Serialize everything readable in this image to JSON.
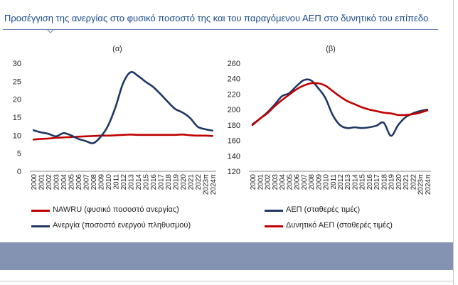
{
  "header": {
    "title": "Προσέγγιση της ανεργίας στο φυσικό ποσοστό της και του παραγόμενου ΑΕΠ στο δυνητικό του επίπεδο"
  },
  "colors": {
    "title": "#1a4a8c",
    "blue_series": "#1f3864",
    "red_series": "#c00000",
    "footer_band": "#8393b1"
  },
  "chart_data": [
    {
      "type": "line",
      "title": "(α)",
      "xlabel": "",
      "ylabel": "",
      "ylim": [
        0,
        30
      ],
      "yticks": [
        0,
        5,
        10,
        15,
        20,
        25,
        30
      ],
      "grid": false,
      "legend": "bottom",
      "categories": [
        "2000",
        "2001",
        "2002",
        "2003",
        "2004",
        "2005",
        "2006",
        "2007",
        "2008",
        "2009",
        "2010",
        "2011",
        "2012",
        "2013",
        "2014",
        "2015",
        "2016",
        "2017",
        "2018",
        "2019",
        "2020",
        "2021",
        "2022",
        "2023π",
        "2024π"
      ],
      "series": [
        {
          "name": "NAWRU (φυσικό ποσοστό ανεργίας)",
          "color": "#c00000",
          "values": [
            8.8,
            9.0,
            9.1,
            9.3,
            9.4,
            9.5,
            9.6,
            9.7,
            9.8,
            9.9,
            9.9,
            10.0,
            10.1,
            10.2,
            10.1,
            10.1,
            10.1,
            10.1,
            10.1,
            10.1,
            10.2,
            10.0,
            9.9,
            9.9,
            9.8
          ]
        },
        {
          "name": "Ανεργία (ποσοστό ενεργού πληθυσμού)",
          "color": "#1f3864",
          "values": [
            11.4,
            10.8,
            10.4,
            9.7,
            10.6,
            10.0,
            9.0,
            8.4,
            7.8,
            9.6,
            12.7,
            17.9,
            24.4,
            27.5,
            26.5,
            24.9,
            23.5,
            21.5,
            19.3,
            17.3,
            16.3,
            14.8,
            12.4,
            11.7,
            11.3
          ]
        }
      ]
    },
    {
      "type": "line",
      "title": "(β)",
      "xlabel": "",
      "ylabel": "",
      "ylim": [
        120,
        260
      ],
      "yticks": [
        120,
        140,
        160,
        180,
        200,
        220,
        240,
        260
      ],
      "grid": false,
      "legend": "bottom",
      "categories": [
        "2000",
        "2001",
        "2002",
        "2003",
        "2004",
        "2005",
        "2006",
        "2007",
        "2008",
        "2009",
        "2010",
        "2011",
        "2012",
        "2013",
        "2014",
        "2015",
        "2016",
        "2017",
        "2018",
        "2019",
        "2020",
        "2021",
        "2022",
        "2023π",
        "2024π"
      ],
      "series": [
        {
          "name": "ΑΕΠ (σταθερές τιμές)",
          "color": "#1f3864",
          "values": [
            181,
            188,
            196,
            206,
            217,
            221,
            230,
            238,
            238,
            228,
            215,
            193,
            180,
            176,
            177,
            176,
            177,
            179,
            183,
            166,
            180,
            190,
            195,
            198,
            200
          ]
        },
        {
          "name": "Δυνητικό ΑΕΠ (σταθερές τιμές)",
          "color": "#c00000",
          "values": [
            180,
            188,
            195,
            204,
            212,
            219,
            226,
            231,
            234,
            234,
            231,
            224,
            217,
            211,
            207,
            203,
            200,
            198,
            196,
            195,
            193,
            193,
            194,
            196,
            199
          ]
        }
      ]
    }
  ]
}
